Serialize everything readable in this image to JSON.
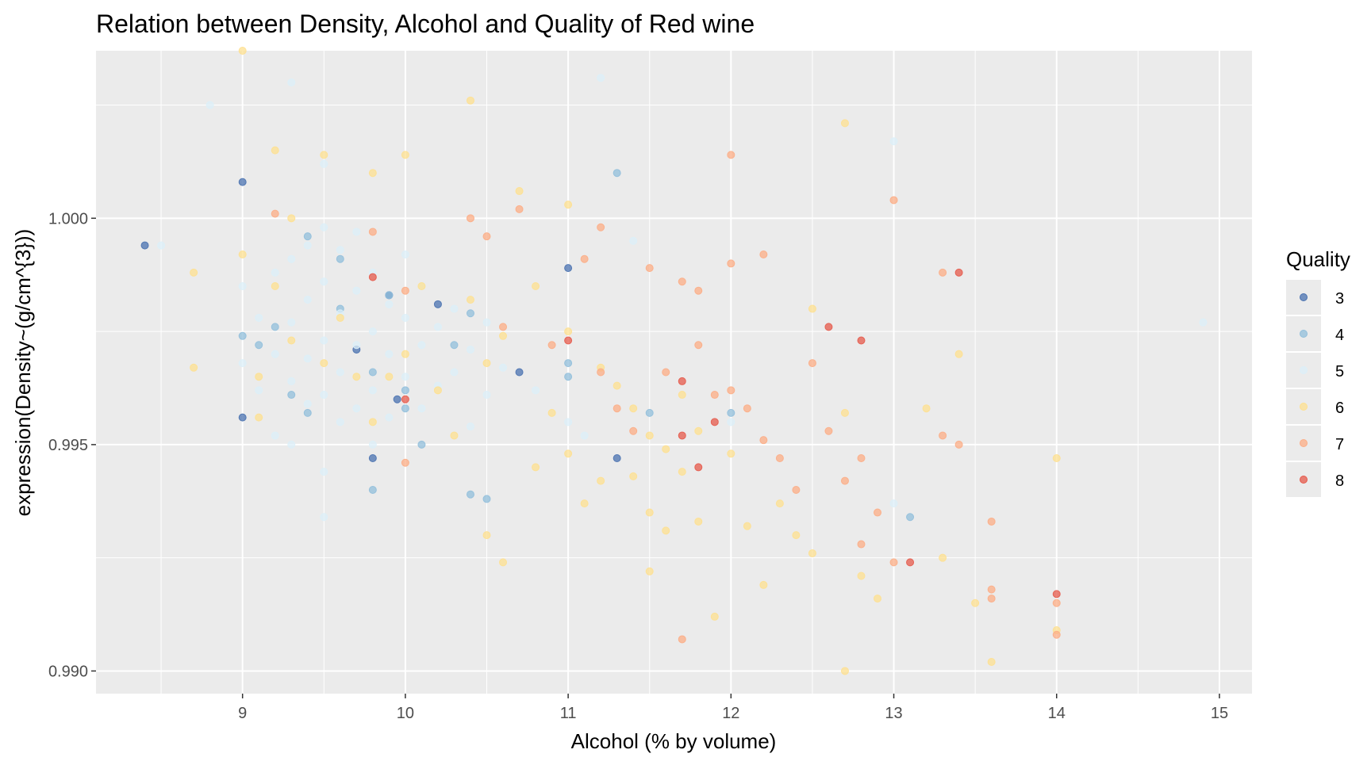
{
  "chart_data": {
    "type": "scatter",
    "title": "Relation between Density, Alcohol and Quality of Red wine",
    "xlabel": "Alcohol (% by volume)",
    "ylabel": "expression(Density~(g/cm^{3}))",
    "xlim": [
      8.1,
      15.2
    ],
    "ylim": [
      0.9895,
      1.0037
    ],
    "x_ticks": [
      9,
      10,
      11,
      12,
      13,
      14,
      15
    ],
    "x_tick_labels": [
      "9",
      "10",
      "11",
      "12",
      "13",
      "14",
      "15"
    ],
    "y_ticks": [
      0.99,
      0.995,
      1.0
    ],
    "y_tick_labels": [
      "0.990",
      "0.995",
      "1.000"
    ],
    "grid": true,
    "panel_background": "#ebebeb",
    "legend": {
      "title": "Quality",
      "position": "right",
      "entries": [
        "3",
        "4",
        "5",
        "6",
        "7",
        "8"
      ]
    },
    "series": [
      {
        "name": "3",
        "color": "#4a72b0",
        "points": [
          [
            8.4,
            0.9994
          ],
          [
            9.0,
            1.0008
          ],
          [
            9.0,
            0.9956
          ],
          [
            9.7,
            0.9971
          ],
          [
            9.8,
            0.9947
          ],
          [
            9.9,
            0.9983
          ],
          [
            9.95,
            0.996
          ],
          [
            10.2,
            0.9981
          ],
          [
            10.7,
            0.9966
          ],
          [
            11.0,
            0.9989
          ],
          [
            11.3,
            0.9947
          ]
        ]
      },
      {
        "name": "4",
        "color": "#91bfdb",
        "points": [
          [
            9.0,
            0.9974
          ],
          [
            9.1,
            0.9972
          ],
          [
            9.2,
            0.9976
          ],
          [
            9.3,
            0.9961
          ],
          [
            9.4,
            0.9996
          ],
          [
            9.4,
            0.9957
          ],
          [
            9.6,
            0.9991
          ],
          [
            9.6,
            0.998
          ],
          [
            9.8,
            0.9966
          ],
          [
            9.8,
            0.994
          ],
          [
            9.9,
            0.9983
          ],
          [
            10.0,
            0.9962
          ],
          [
            10.0,
            0.9958
          ],
          [
            10.1,
            0.995
          ],
          [
            10.3,
            0.9972
          ],
          [
            10.4,
            0.9979
          ],
          [
            10.4,
            0.9939
          ],
          [
            10.5,
            0.9938
          ],
          [
            11.0,
            0.9968
          ],
          [
            11.0,
            0.9965
          ],
          [
            11.3,
            1.001
          ],
          [
            11.5,
            0.9957
          ],
          [
            12.0,
            0.9957
          ],
          [
            13.1,
            0.9934
          ]
        ]
      },
      {
        "name": "5",
        "color": "#dceff8",
        "points": [
          [
            8.5,
            0.9994
          ],
          [
            8.8,
            1.0025
          ],
          [
            9.0,
            0.9985
          ],
          [
            9.0,
            0.9968
          ],
          [
            9.1,
            0.9978
          ],
          [
            9.1,
            0.9962
          ],
          [
            9.2,
            0.9988
          ],
          [
            9.2,
            0.997
          ],
          [
            9.2,
            0.9952
          ],
          [
            9.3,
            1.003
          ],
          [
            9.3,
            0.9991
          ],
          [
            9.3,
            0.9977
          ],
          [
            9.3,
            0.9964
          ],
          [
            9.3,
            0.995
          ],
          [
            9.4,
            0.9994
          ],
          [
            9.4,
            0.9982
          ],
          [
            9.4,
            0.9969
          ],
          [
            9.4,
            0.9959
          ],
          [
            9.5,
            1.0012
          ],
          [
            9.5,
            0.9998
          ],
          [
            9.5,
            0.9986
          ],
          [
            9.5,
            0.9973
          ],
          [
            9.5,
            0.9961
          ],
          [
            9.5,
            0.9944
          ],
          [
            9.5,
            0.9934
          ],
          [
            9.6,
            0.9993
          ],
          [
            9.6,
            0.9979
          ],
          [
            9.6,
            0.9966
          ],
          [
            9.6,
            0.9955
          ],
          [
            9.7,
            0.9997
          ],
          [
            9.7,
            0.9984
          ],
          [
            9.7,
            0.9972
          ],
          [
            9.7,
            0.9958
          ],
          [
            9.8,
            0.9988
          ],
          [
            9.8,
            0.9975
          ],
          [
            9.8,
            0.9962
          ],
          [
            9.8,
            0.995
          ],
          [
            9.9,
            0.9981
          ],
          [
            9.9,
            0.997
          ],
          [
            9.9,
            0.9956
          ],
          [
            10.0,
            0.9992
          ],
          [
            10.0,
            0.9978
          ],
          [
            10.0,
            0.9965
          ],
          [
            10.1,
            0.9985
          ],
          [
            10.1,
            0.9972
          ],
          [
            10.1,
            0.9958
          ],
          [
            10.2,
            0.9976
          ],
          [
            10.2,
            0.9963
          ],
          [
            10.3,
            0.998
          ],
          [
            10.3,
            0.9966
          ],
          [
            10.4,
            0.9971
          ],
          [
            10.4,
            0.9954
          ],
          [
            10.5,
            0.9977
          ],
          [
            10.5,
            0.9961
          ],
          [
            10.6,
            0.9967
          ],
          [
            10.8,
            0.9962
          ],
          [
            11.0,
            0.9955
          ],
          [
            11.1,
            0.9952
          ],
          [
            11.2,
            1.0031
          ],
          [
            11.4,
            0.9995
          ],
          [
            12.0,
            0.9955
          ],
          [
            13.0,
            1.0017
          ],
          [
            13.0,
            0.9937
          ],
          [
            14.9,
            0.9977
          ]
        ]
      },
      {
        "name": "6",
        "color": "#fee090",
        "points": [
          [
            8.7,
            0.9988
          ],
          [
            8.7,
            0.9967
          ],
          [
            9.0,
            1.0037
          ],
          [
            9.0,
            0.9992
          ],
          [
            9.1,
            0.9965
          ],
          [
            9.1,
            0.9956
          ],
          [
            9.2,
            1.0015
          ],
          [
            9.2,
            0.9985
          ],
          [
            9.3,
            1.0
          ],
          [
            9.3,
            0.9973
          ],
          [
            9.5,
            1.0014
          ],
          [
            9.5,
            0.9968
          ],
          [
            9.6,
            0.9978
          ],
          [
            9.7,
            0.9965
          ],
          [
            9.8,
            1.001
          ],
          [
            9.8,
            0.9955
          ],
          [
            9.9,
            0.9965
          ],
          [
            10.0,
            1.0014
          ],
          [
            10.0,
            0.997
          ],
          [
            10.1,
            0.9985
          ],
          [
            10.2,
            0.9962
          ],
          [
            10.3,
            0.9952
          ],
          [
            10.4,
            1.0026
          ],
          [
            10.4,
            0.9982
          ],
          [
            10.5,
            0.9968
          ],
          [
            10.5,
            0.993
          ],
          [
            10.6,
            0.9974
          ],
          [
            10.6,
            0.9924
          ],
          [
            10.7,
            1.0006
          ],
          [
            10.8,
            0.9985
          ],
          [
            10.8,
            0.9945
          ],
          [
            10.9,
            0.9957
          ],
          [
            11.0,
            1.0003
          ],
          [
            11.0,
            0.9975
          ],
          [
            11.0,
            0.9948
          ],
          [
            11.1,
            0.9937
          ],
          [
            11.2,
            0.9967
          ],
          [
            11.2,
            0.9942
          ],
          [
            11.3,
            0.9963
          ],
          [
            11.4,
            0.9958
          ],
          [
            11.4,
            0.9943
          ],
          [
            11.5,
            0.9952
          ],
          [
            11.5,
            0.9935
          ],
          [
            11.5,
            0.9922
          ],
          [
            11.6,
            0.9949
          ],
          [
            11.6,
            0.9931
          ],
          [
            11.7,
            0.9961
          ],
          [
            11.7,
            0.9944
          ],
          [
            11.8,
            0.9953
          ],
          [
            11.8,
            0.9933
          ],
          [
            11.9,
            0.9912
          ],
          [
            12.0,
            0.9948
          ],
          [
            12.1,
            0.9932
          ],
          [
            12.2,
            0.9919
          ],
          [
            12.3,
            0.9937
          ],
          [
            12.4,
            0.993
          ],
          [
            12.5,
            0.998
          ],
          [
            12.5,
            0.9926
          ],
          [
            12.7,
            1.0021
          ],
          [
            12.7,
            0.9957
          ],
          [
            12.7,
            0.99
          ],
          [
            12.8,
            0.9921
          ],
          [
            12.9,
            0.9916
          ],
          [
            13.2,
            0.9958
          ],
          [
            13.3,
            0.9925
          ],
          [
            13.4,
            0.997
          ],
          [
            13.5,
            0.9915
          ],
          [
            13.6,
            0.9902
          ],
          [
            14.0,
            0.9947
          ],
          [
            14.0,
            0.9909
          ]
        ]
      },
      {
        "name": "7",
        "color": "#fcad86",
        "points": [
          [
            9.2,
            1.0001
          ],
          [
            9.8,
            0.9997
          ],
          [
            10.0,
            0.9984
          ],
          [
            10.0,
            0.9946
          ],
          [
            10.4,
            1.0
          ],
          [
            10.5,
            0.9996
          ],
          [
            10.6,
            0.9976
          ],
          [
            10.7,
            1.0002
          ],
          [
            10.9,
            0.9972
          ],
          [
            11.1,
            0.9991
          ],
          [
            11.2,
            0.9998
          ],
          [
            11.2,
            0.9966
          ],
          [
            11.3,
            0.9958
          ],
          [
            11.4,
            0.9953
          ],
          [
            11.5,
            0.9989
          ],
          [
            11.6,
            0.9966
          ],
          [
            11.7,
            0.9986
          ],
          [
            11.7,
            0.9907
          ],
          [
            11.8,
            0.9984
          ],
          [
            11.8,
            0.9972
          ],
          [
            11.9,
            0.9961
          ],
          [
            12.0,
            1.0014
          ],
          [
            12.0,
            0.999
          ],
          [
            12.0,
            0.9962
          ],
          [
            12.1,
            0.9958
          ],
          [
            12.2,
            0.9992
          ],
          [
            12.2,
            0.9951
          ],
          [
            12.3,
            0.9947
          ],
          [
            12.4,
            0.994
          ],
          [
            12.5,
            0.9968
          ],
          [
            12.6,
            0.9953
          ],
          [
            12.7,
            0.9942
          ],
          [
            12.8,
            0.9947
          ],
          [
            12.8,
            0.9928
          ],
          [
            12.9,
            0.9935
          ],
          [
            13.0,
            1.0004
          ],
          [
            13.0,
            0.9924
          ],
          [
            13.3,
            0.9988
          ],
          [
            13.3,
            0.9952
          ],
          [
            13.4,
            0.995
          ],
          [
            13.6,
            0.9933
          ],
          [
            13.6,
            0.9918
          ],
          [
            13.6,
            0.9916
          ],
          [
            14.0,
            0.9915
          ],
          [
            14.0,
            0.9908
          ]
        ]
      },
      {
        "name": "8",
        "color": "#e65a4b",
        "points": [
          [
            9.8,
            0.9987
          ],
          [
            10.0,
            0.996
          ],
          [
            11.0,
            0.9973
          ],
          [
            11.7,
            0.9964
          ],
          [
            11.7,
            0.9952
          ],
          [
            11.8,
            0.9945
          ],
          [
            11.9,
            0.9955
          ],
          [
            12.6,
            0.9976
          ],
          [
            12.8,
            0.9973
          ],
          [
            13.1,
            0.9924
          ],
          [
            13.4,
            0.9988
          ],
          [
            14.0,
            0.9917
          ]
        ]
      }
    ]
  }
}
